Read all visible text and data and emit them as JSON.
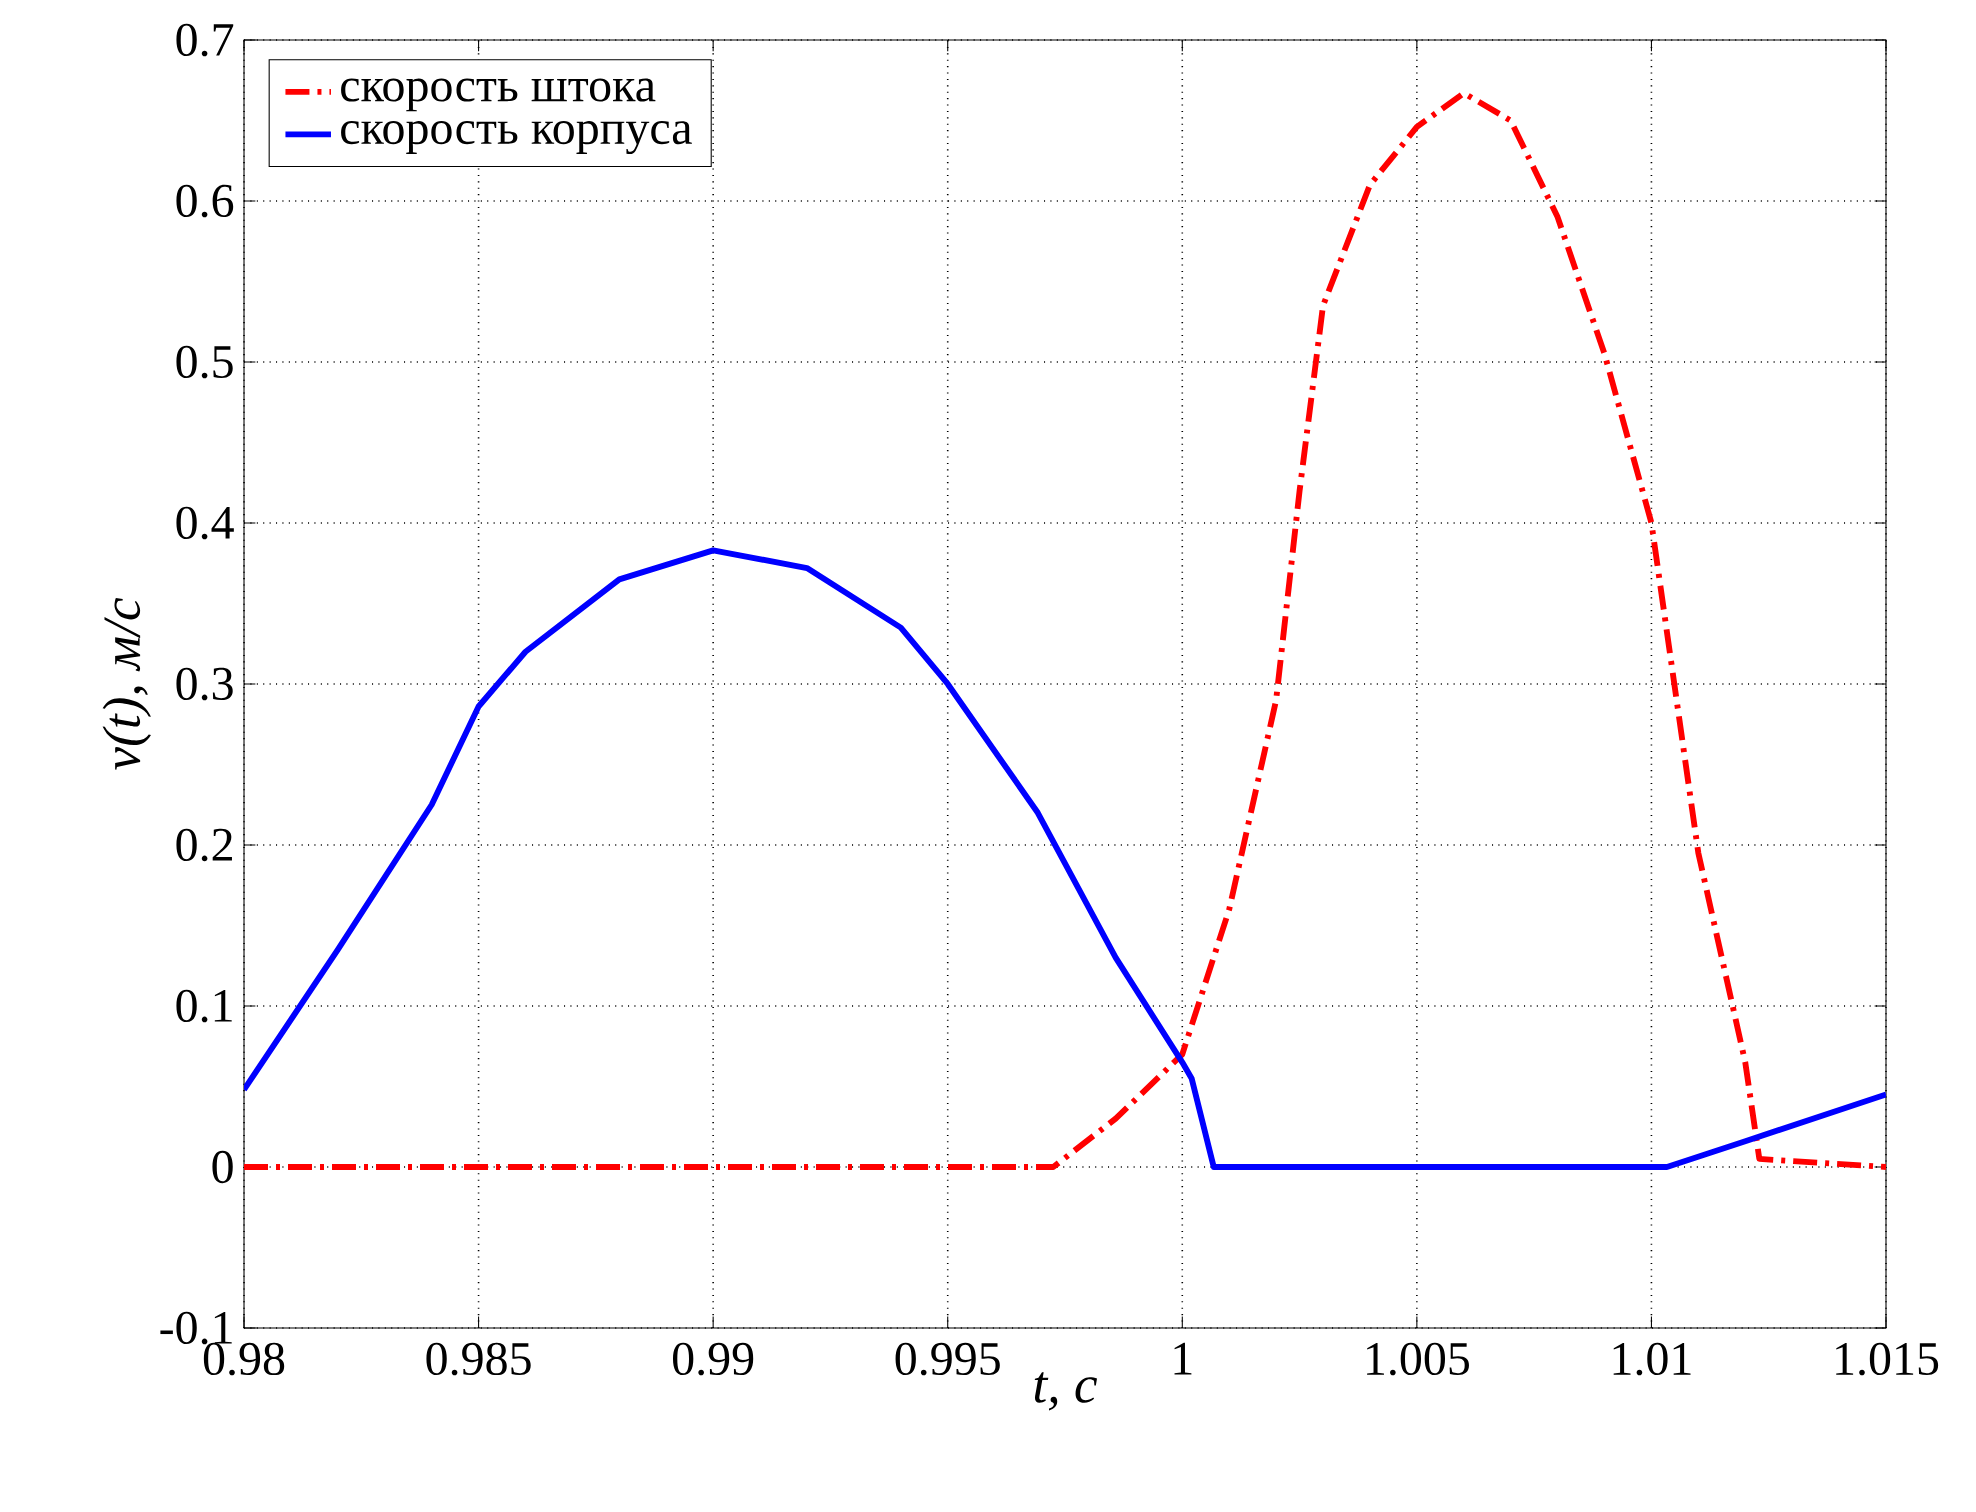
{
  "chart_data": {
    "type": "line",
    "xlabel": "*t, с*",
    "ylabel": "*v(t), м/с*",
    "xlim": [
      0.98,
      1.015
    ],
    "ylim": [
      -0.1,
      0.7
    ],
    "xticks": [
      0.98,
      0.985,
      0.99,
      0.995,
      1,
      1.005,
      1.01,
      1.015
    ],
    "yticks": [
      -0.1,
      0,
      0.1,
      0.2,
      0.3,
      0.4,
      0.5,
      0.6,
      0.7
    ],
    "grid": true,
    "legend": "top left",
    "marker": "none",
    "series": [
      {
        "name": "скорость штока",
        "color": "#ff0000",
        "line_style": "dashdot",
        "x": [
          0.98,
          0.99,
          0.997,
          0.99725,
          0.99858,
          1.0,
          1.001,
          1.002,
          1.0025,
          1.003,
          1.004,
          1.005,
          1.006,
          1.007,
          1.008,
          1.009,
          1.01,
          1.011,
          1.012,
          1.0123,
          1.015
        ],
        "values": [
          0,
          0,
          0,
          0,
          0.03,
          0.07,
          0.16,
          0.29,
          0.42,
          0.535,
          0.61,
          0.646,
          0.667,
          0.65,
          0.59,
          0.505,
          0.4,
          0.195,
          0.065,
          0.005,
          0
        ]
      },
      {
        "name": "скорость корпуса",
        "color": "#0000ff",
        "line_style": "solid",
        "x": [
          0.98,
          0.982,
          0.984,
          0.985,
          0.986,
          0.988,
          0.99,
          0.992,
          0.994,
          0.995,
          0.99692,
          0.99858,
          1.0,
          1.0002,
          1.00067,
          1.01033,
          1.012,
          1.015
        ],
        "values": [
          0.048,
          0.135,
          0.225,
          0.286,
          0.32,
          0.365,
          0.383,
          0.372,
          0.335,
          0.3,
          0.22,
          0.13,
          0.065,
          0.055,
          0,
          0,
          0.016,
          0.045
        ]
      }
    ]
  }
}
